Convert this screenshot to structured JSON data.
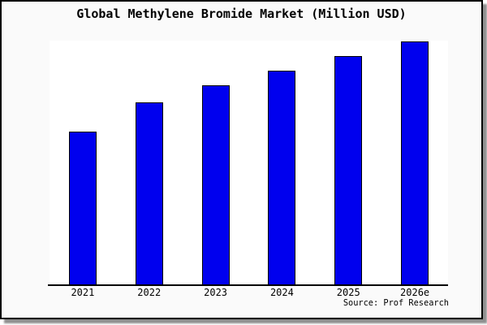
{
  "title": "Global Methylene Bromide Market (Million USD)",
  "source_note": "Source: Prof Research",
  "window": {
    "background": "#fafafa",
    "frame_border_color": "#000000",
    "shadow_color": "#8f8f8f"
  },
  "chart_data": {
    "type": "bar",
    "title": "Global Methylene Bromide Market (Million USD)",
    "categories": [
      "2021",
      "2022",
      "2023",
      "2024",
      "2025",
      "2026e"
    ],
    "values": [
      63,
      75,
      82,
      88,
      94,
      100
    ],
    "values_unit": "relative height (no y-axis tick labels shown in image; max bar normalized to 100)",
    "xlabel": "",
    "ylabel": "",
    "ylim": [
      0,
      100.3
    ],
    "grid": false,
    "legend": false,
    "y_axis_visible": false,
    "bar_color": "#0000ee",
    "bar_border_color": "#000000",
    "plot_background": "#ffffff",
    "axis_line_color": "#000000",
    "annotations": [
      "Source: Prof Research"
    ]
  }
}
